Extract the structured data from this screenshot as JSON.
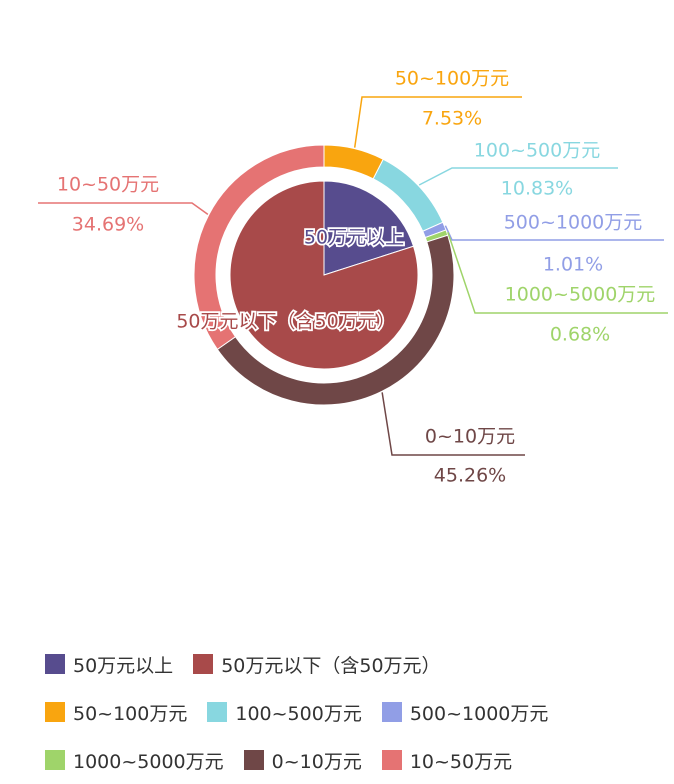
{
  "chart_data": {
    "type": "pie",
    "inner": [
      {
        "name": "50万元以上",
        "value": 20.05,
        "color": "#574c8e"
      },
      {
        "name": "50万元以下（含50万元）",
        "value": 79.95,
        "color": "#a84a4a"
      }
    ],
    "outer": [
      {
        "name": "50~100万元",
        "value": 7.53,
        "label": "7.53%",
        "color": "#f9a50f"
      },
      {
        "name": "100~500万元",
        "value": 10.83,
        "label": "10.83%",
        "color": "#88d7e0"
      },
      {
        "name": "500~1000万元",
        "value": 1.01,
        "label": "1.01%",
        "color": "#919ee6"
      },
      {
        "name": "1000~5000万元",
        "value": 0.68,
        "label": "0.68%",
        "color": "#9fd46a"
      },
      {
        "name": "0~10万元",
        "value": 45.26,
        "label": "45.26%",
        "color": "#6f4747"
      },
      {
        "name": "10~50万元",
        "value": 34.69,
        "label": "34.69%",
        "color": "#e57373"
      }
    ],
    "legend": {
      "placement": "bottom",
      "rows": [
        [
          {
            "name": "50万元以上",
            "color": "#574c8e"
          },
          {
            "name": "50万元以下（含50万元）",
            "color": "#a84a4a"
          }
        ],
        [
          {
            "name": "50~100万元",
            "color": "#f9a50f"
          },
          {
            "name": "100~500万元",
            "color": "#88d7e0"
          },
          {
            "name": "500~1000万元",
            "color": "#919ee6"
          }
        ],
        [
          {
            "name": "1000~5000万元",
            "color": "#9fd46a"
          },
          {
            "name": "0~10万元",
            "color": "#6f4747"
          },
          {
            "name": "10~50万元",
            "color": "#e57373"
          }
        ]
      ]
    }
  }
}
